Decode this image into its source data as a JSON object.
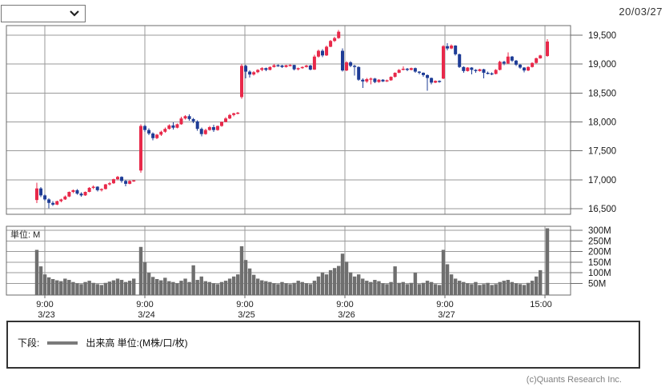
{
  "header": {
    "date_label": "20/03/27",
    "dropdown_value": ""
  },
  "volume_chart": {
    "unit_label": "単位: M"
  },
  "legend": {
    "prefix": "下段:",
    "label": "出来高 単位:(M株/口/枚)",
    "swatch_color": "#7a7a7a"
  },
  "footer": {
    "copyright": "(c)Quants Research Inc."
  },
  "colors": {
    "up": "#e8294a",
    "down": "#1e3c96",
    "volume_bar": "#6f6f6f",
    "grid": "#9a9a9a",
    "border": "#6b6b6b",
    "axis_text": "#1a1a1a"
  },
  "chart_data": {
    "type": "candlestick+volume",
    "title": "",
    "price_axis": {
      "ticks": [
        19500,
        19000,
        18500,
        18000,
        17500,
        17000,
        16500
      ],
      "labels": [
        "19,500",
        "19,000",
        "18,500",
        "18,000",
        "17,500",
        "17,000",
        "16,500"
      ],
      "range": [
        16360,
        19660
      ]
    },
    "volume_axis": {
      "ticks_m": [
        300,
        250,
        200,
        150,
        100,
        50
      ],
      "labels": [
        "300M",
        "250M",
        "200M",
        "150M",
        "100M",
        "50M"
      ],
      "range_m": [
        0,
        320
      ]
    },
    "x_ticks": [
      {
        "time": "9:00",
        "date": "3/23"
      },
      {
        "time": "9:00",
        "date": "3/24"
      },
      {
        "time": "9:00",
        "date": "3/25"
      },
      {
        "time": "9:00",
        "date": "3/26"
      },
      {
        "time": "9:00",
        "date": "3/27"
      },
      {
        "time": "15:00",
        "date": ""
      }
    ],
    "days": [
      {
        "date": "3/23",
        "candles": [
          [
            16650,
            16950,
            16600,
            16850
          ],
          [
            16850,
            16870,
            16700,
            16730
          ],
          [
            16730,
            16750,
            16640,
            16660
          ],
          [
            16660,
            16680,
            16510,
            16600
          ],
          [
            16600,
            16630,
            16550,
            16570
          ],
          [
            16570,
            16640,
            16560,
            16630
          ],
          [
            16630,
            16670,
            16610,
            16660
          ],
          [
            16660,
            16730,
            16650,
            16710
          ],
          [
            16710,
            16800,
            16700,
            16790
          ],
          [
            16790,
            16830,
            16770,
            16820
          ],
          [
            16820,
            16840,
            16740,
            16760
          ],
          [
            16760,
            16780,
            16710,
            16730
          ],
          [
            16730,
            16800,
            16720,
            16790
          ],
          [
            16790,
            16870,
            16780,
            16860
          ],
          [
            16860,
            16900,
            16840,
            16880
          ],
          [
            16880,
            16890,
            16800,
            16820
          ],
          [
            16820,
            16850,
            16800,
            16840
          ],
          [
            16840,
            16930,
            16830,
            16920
          ],
          [
            16920,
            16960,
            16900,
            16940
          ],
          [
            16940,
            17020,
            16930,
            17010
          ],
          [
            17010,
            17070,
            16990,
            17050
          ],
          [
            17050,
            17060,
            16950,
            16980
          ],
          [
            16980,
            17000,
            16890,
            16930
          ],
          [
            16930,
            16990,
            16920,
            16980
          ],
          [
            16980,
            17000,
            16960,
            16990
          ]
        ],
        "volumes_m": [
          208,
          130,
          92,
          78,
          70,
          64,
          60,
          72,
          66,
          56,
          50,
          46,
          56,
          62,
          52,
          46,
          42,
          52,
          58,
          64,
          72,
          66,
          56,
          62,
          72
        ]
      },
      {
        "date": "3/24",
        "candles": [
          [
            17160,
            17960,
            17120,
            17930
          ],
          [
            17930,
            17950,
            17830,
            17860
          ],
          [
            17860,
            17890,
            17770,
            17800
          ],
          [
            17800,
            17820,
            17680,
            17720
          ],
          [
            17720,
            17790,
            17700,
            17780
          ],
          [
            17780,
            17850,
            17760,
            17830
          ],
          [
            17830,
            17900,
            17810,
            17880
          ],
          [
            17880,
            17960,
            17870,
            17940
          ],
          [
            17940,
            17990,
            17870,
            17900
          ],
          [
            17900,
            17970,
            17890,
            17960
          ],
          [
            17960,
            18090,
            17950,
            18060
          ],
          [
            18060,
            18120,
            18040,
            18100
          ],
          [
            18100,
            18130,
            18020,
            18050
          ],
          [
            18050,
            18070,
            17980,
            18010
          ],
          [
            18010,
            18030,
            17850,
            17880
          ],
          [
            17880,
            17900,
            17750,
            17790
          ],
          [
            17790,
            17880,
            17780,
            17860
          ],
          [
            17860,
            17930,
            17850,
            17910
          ],
          [
            17910,
            17950,
            17830,
            17860
          ],
          [
            17860,
            17940,
            17850,
            17930
          ],
          [
            17930,
            18010,
            17920,
            18000
          ],
          [
            18000,
            18080,
            17990,
            18060
          ],
          [
            18060,
            18140,
            18050,
            18120
          ],
          [
            18120,
            18160,
            18100,
            18150
          ],
          [
            18150,
            18170,
            18130,
            18160
          ]
        ],
        "volumes_m": [
          222,
          150,
          100,
          80,
          70,
          64,
          76,
          60,
          56,
          50,
          62,
          72,
          56,
          135,
          66,
          82,
          60,
          56,
          50,
          46,
          56,
          62,
          72,
          82,
          92
        ]
      },
      {
        "date": "3/25",
        "candles": [
          [
            18430,
            19000,
            18400,
            18970
          ],
          [
            18970,
            18990,
            18750,
            18870
          ],
          [
            18870,
            18890,
            18770,
            18820
          ],
          [
            18820,
            18880,
            18800,
            18860
          ],
          [
            18860,
            18910,
            18840,
            18900
          ],
          [
            18900,
            18950,
            18880,
            18930
          ],
          [
            18930,
            18940,
            18880,
            18900
          ],
          [
            18900,
            18960,
            18890,
            18950
          ],
          [
            18950,
            19000,
            18940,
            18980
          ],
          [
            18980,
            18995,
            18955,
            18975
          ],
          [
            18975,
            18985,
            18930,
            18950
          ],
          [
            18950,
            18990,
            18940,
            18980
          ],
          [
            18980,
            18995,
            18960,
            18985
          ],
          [
            18985,
            18990,
            18890,
            18910
          ],
          [
            18910,
            18940,
            18895,
            18930
          ],
          [
            18930,
            18960,
            18920,
            18950
          ],
          [
            18950,
            18990,
            18940,
            18975
          ],
          [
            18975,
            18985,
            18890,
            18905
          ],
          [
            18905,
            19160,
            18900,
            19130
          ],
          [
            19130,
            19250,
            19110,
            19230
          ],
          [
            19230,
            19260,
            19120,
            19150
          ],
          [
            19150,
            19320,
            19140,
            19300
          ],
          [
            19300,
            19420,
            19290,
            19400
          ],
          [
            19400,
            19470,
            19380,
            19450
          ],
          [
            19450,
            19590,
            19440,
            19560
          ]
        ],
        "volumes_m": [
          225,
          160,
          120,
          90,
          72,
          64,
          60,
          56,
          50,
          46,
          56,
          50,
          46,
          52,
          62,
          56,
          50,
          46,
          62,
          82,
          102,
          92,
          112,
          122,
          132
        ]
      },
      {
        "date": "3/26",
        "candles": [
          [
            19230,
            19270,
            18870,
            18890
          ],
          [
            18890,
            19050,
            18880,
            19030
          ],
          [
            19030,
            19050,
            18950,
            18970
          ],
          [
            18970,
            18990,
            18800,
            18950
          ],
          [
            18950,
            18960,
            18710,
            18730
          ],
          [
            18730,
            18750,
            18590,
            18700
          ],
          [
            18700,
            18760,
            18680,
            18740
          ],
          [
            18740,
            18770,
            18650,
            18750
          ],
          [
            18750,
            18760,
            18670,
            18690
          ],
          [
            18690,
            18740,
            18680,
            18730
          ],
          [
            18730,
            18740,
            18690,
            18700
          ],
          [
            18700,
            18730,
            18690,
            18720
          ],
          [
            18720,
            18790,
            18710,
            18780
          ],
          [
            18780,
            18860,
            18770,
            18850
          ],
          [
            18850,
            18910,
            18840,
            18900
          ],
          [
            18900,
            18960,
            18890,
            18920
          ],
          [
            18920,
            18930,
            18880,
            18900
          ],
          [
            18900,
            18940,
            18890,
            18930
          ],
          [
            18930,
            18940,
            18850,
            18870
          ],
          [
            18870,
            18880,
            18820,
            18850
          ],
          [
            18850,
            18860,
            18780,
            18810
          ],
          [
            18810,
            18820,
            18540,
            18760
          ],
          [
            18760,
            18770,
            18650,
            18680
          ],
          [
            18680,
            18720,
            18670,
            18710
          ],
          [
            18710,
            18720,
            18680,
            18700
          ]
        ],
        "volumes_m": [
          190,
          152,
          102,
          82,
          92,
          72,
          62,
          56,
          66,
          60,
          50,
          46,
          56,
          130,
          52,
          56,
          46,
          52,
          100,
          46,
          52,
          62,
          56,
          46,
          42
        ]
      },
      {
        "date": "3/27",
        "candles": [
          [
            18750,
            19330,
            18740,
            19310
          ],
          [
            19310,
            19360,
            19240,
            19270
          ],
          [
            19270,
            19340,
            19260,
            19320
          ],
          [
            19320,
            19330,
            19150,
            19170
          ],
          [
            19170,
            19180,
            18930,
            18950
          ],
          [
            18950,
            18960,
            18850,
            18880
          ],
          [
            18880,
            18950,
            18870,
            18940
          ],
          [
            18940,
            18950,
            18820,
            18900
          ],
          [
            18900,
            18910,
            18850,
            18880
          ],
          [
            18880,
            18920,
            18870,
            18910
          ],
          [
            18910,
            18920,
            18750,
            18850
          ],
          [
            18850,
            18870,
            18820,
            18840
          ],
          [
            18840,
            18855,
            18810,
            18830
          ],
          [
            18830,
            18910,
            18820,
            18900
          ],
          [
            18900,
            19060,
            18890,
            19040
          ],
          [
            19040,
            19060,
            18980,
            19010
          ],
          [
            19010,
            19200,
            19000,
            19130
          ],
          [
            19130,
            19140,
            19040,
            19060
          ],
          [
            19060,
            19070,
            18970,
            18990
          ],
          [
            18990,
            19000,
            18920,
            18940
          ],
          [
            18940,
            18950,
            18860,
            18890
          ],
          [
            18890,
            18960,
            18880,
            18950
          ],
          [
            18950,
            19030,
            18940,
            19020
          ],
          [
            19020,
            19110,
            19010,
            19100
          ],
          [
            19100,
            19160,
            19090,
            19150
          ],
          [
            19140,
            19430,
            19130,
            19390
          ]
        ],
        "volumes_m": [
          208,
          140,
          92,
          72,
          62,
          56,
          50,
          46,
          56,
          42,
          46,
          52,
          42,
          46,
          56,
          62,
          66,
          56,
          50,
          46,
          42,
          52,
          62,
          82,
          112,
          310
        ]
      }
    ]
  }
}
